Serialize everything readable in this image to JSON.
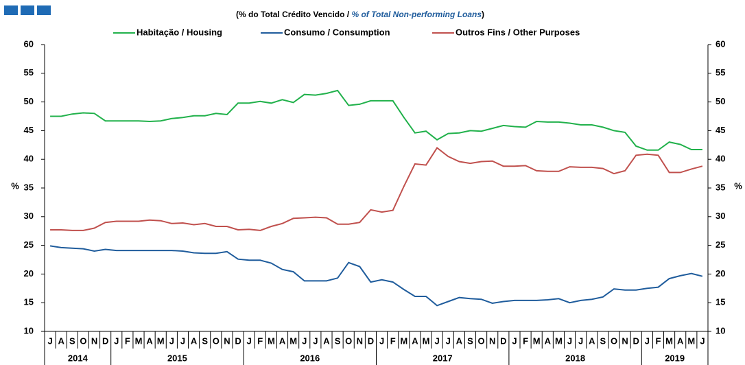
{
  "chart_data": {
    "type": "line",
    "subtitle": [
      "(% do Total Crédito Vencido /",
      "% of Total Non-performing Loans",
      ")"
    ],
    "y_label": "%",
    "y2_label": "%",
    "categories": [
      "J",
      "A",
      "S",
      "O",
      "N",
      "D",
      "J",
      "F",
      "M",
      "A",
      "M",
      "J",
      "J",
      "A",
      "S",
      "O",
      "N",
      "D",
      "J",
      "F",
      "M",
      "A",
      "M",
      "J",
      "J",
      "A",
      "S",
      "O",
      "N",
      "D",
      "J",
      "F",
      "M",
      "A",
      "M",
      "J",
      "J",
      "A",
      "S",
      "O",
      "N",
      "D",
      "J",
      "F",
      "M",
      "A",
      "M",
      "J",
      "J",
      "A",
      "S",
      "O",
      "N",
      "D",
      "J",
      "F",
      "M",
      "A",
      "M",
      "J"
    ],
    "year_groups": [
      {
        "label": "2014",
        "months": 6
      },
      {
        "label": "2015",
        "months": 12
      },
      {
        "label": "2016",
        "months": 12
      },
      {
        "label": "2017",
        "months": 12
      },
      {
        "label": "2018",
        "months": 12
      },
      {
        "label": "2019",
        "months": 6
      }
    ],
    "series": [
      {
        "name": "Habitação / Housing",
        "color": "#21b14b",
        "values": [
          47.5,
          47.5,
          47.9,
          48.1,
          48.0,
          46.7,
          46.7,
          46.7,
          46.7,
          46.6,
          46.7,
          47.1,
          47.3,
          47.6,
          47.6,
          48.0,
          47.8,
          49.8,
          49.8,
          50.1,
          49.8,
          50.4,
          49.9,
          51.3,
          51.2,
          51.5,
          52.0,
          49.4,
          49.6,
          50.2,
          50.2,
          50.2,
          47.3,
          44.6,
          44.9,
          43.4,
          44.5,
          44.6,
          45.0,
          44.9,
          45.4,
          45.9,
          45.7,
          45.6,
          46.6,
          46.5,
          46.5,
          46.3,
          46.0,
          46.0,
          45.6,
          45.0,
          44.7,
          42.3,
          41.6,
          41.6,
          43.0,
          42.6,
          41.7,
          41.7
        ]
      },
      {
        "name": "Consumo / Consumption",
        "color": "#1f5c9c",
        "values": [
          24.9,
          24.6,
          24.5,
          24.4,
          24.0,
          24.3,
          24.1,
          24.1,
          24.1,
          24.1,
          24.1,
          24.1,
          24.0,
          23.7,
          23.6,
          23.6,
          23.9,
          22.6,
          22.4,
          22.4,
          21.9,
          20.8,
          20.4,
          18.8,
          18.8,
          18.8,
          19.3,
          22.0,
          21.3,
          18.6,
          19.0,
          18.6,
          17.3,
          16.1,
          16.1,
          14.5,
          15.2,
          15.9,
          15.7,
          15.6,
          14.9,
          15.2,
          15.4,
          15.4,
          15.4,
          15.5,
          15.7,
          15.0,
          15.4,
          15.6,
          16.0,
          17.4,
          17.2,
          17.2,
          17.5,
          17.7,
          19.2,
          19.7,
          20.1,
          19.6
        ]
      },
      {
        "name": "Outros Fins / Other Purposes",
        "color": "#c0504d",
        "values": [
          27.7,
          27.7,
          27.6,
          27.6,
          28.0,
          29.0,
          29.2,
          29.2,
          29.2,
          29.4,
          29.3,
          28.8,
          28.9,
          28.6,
          28.8,
          28.3,
          28.3,
          27.7,
          27.8,
          27.6,
          28.3,
          28.8,
          29.7,
          29.8,
          29.9,
          29.8,
          28.7,
          28.7,
          29.0,
          31.2,
          30.8,
          31.1,
          35.3,
          39.2,
          39.0,
          42.0,
          40.5,
          39.6,
          39.3,
          39.6,
          39.7,
          38.8,
          38.8,
          38.9,
          38.0,
          37.9,
          37.9,
          38.7,
          38.6,
          38.6,
          38.4,
          37.5,
          38.0,
          40.7,
          40.9,
          40.7,
          37.7,
          37.7,
          38.3,
          38.8
        ]
      }
    ],
    "ylim": [
      10,
      60
    ],
    "yticks": [
      10,
      15,
      20,
      25,
      30,
      35,
      40,
      45,
      50,
      55,
      60
    ],
    "y2lim": [
      10,
      60
    ],
    "y2ticks": [
      10,
      15,
      20,
      25,
      30,
      35,
      40,
      45,
      50,
      55,
      60
    ]
  }
}
